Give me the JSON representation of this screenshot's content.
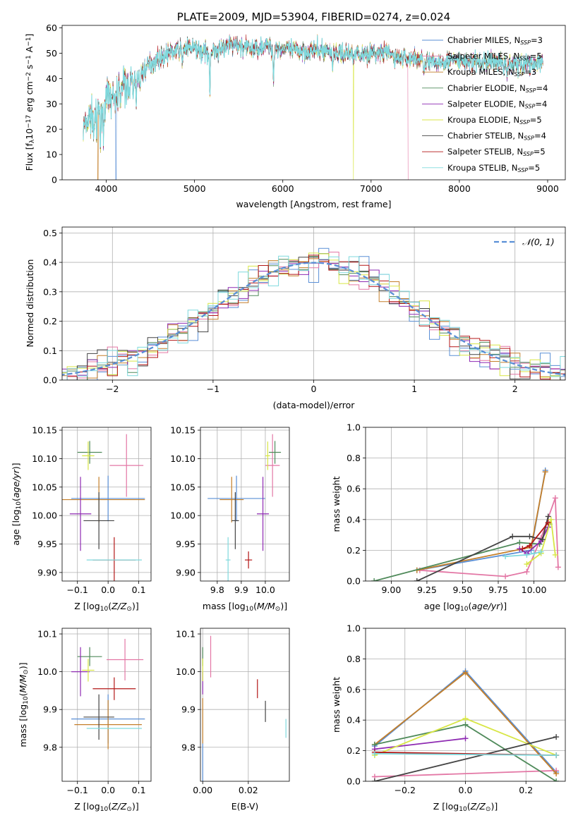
{
  "figure_title": "PLATE=2009, MJD=53904, FIBERID=0274, z=0.024",
  "colors": {
    "Chabrier MILES": "#5a8fd6",
    "Salpeter MILES": "#e377a5",
    "Kroupa MILES": "#c47f2a",
    "Chabrier ELODIE": "#4f8a5a",
    "Salpeter ELODIE": "#8e2ab2",
    "Kroupa ELODIE": "#d8e646",
    "Chabrier STELIB": "#444444",
    "Salpeter STELIB": "#b31717",
    "Kroupa STELIB": "#7fd9dd"
  },
  "chart_data": [
    {
      "id": "spectrum",
      "type": "line",
      "title": "PLATE=2009, MJD=53904, FIBERID=0274, z=0.024",
      "xlabel": "wavelength [Angstrom, rest frame]",
      "ylabel_parts": [
        "Flux [f",
        "λ",
        "10",
        "−17",
        " erg cm",
        "−2",
        " s",
        "−1",
        " A",
        "−1",
        "]"
      ],
      "xlim": [
        3500,
        9200
      ],
      "ylim": [
        0,
        61
      ],
      "xticks": [
        "4000",
        "5000",
        "6000",
        "7000",
        "8000",
        "9000"
      ],
      "yticks": [
        "0",
        "10",
        "20",
        "30",
        "40",
        "50",
        "60"
      ],
      "legend_position": "upper-right",
      "legend": [
        {
          "model": "Chabrier MILES",
          "n": "3"
        },
        {
          "model": "Salpeter MILES",
          "n": "5"
        },
        {
          "model": "Kroupa MILES",
          "n": "3"
        },
        {
          "model": "Chabrier ELODIE",
          "n": "4"
        },
        {
          "model": "Salpeter ELODIE",
          "n": "4"
        },
        {
          "model": "Kroupa ELODIE",
          "n": "5"
        },
        {
          "model": "Chabrier STELIB",
          "n": "4"
        },
        {
          "model": "Salpeter STELIB",
          "n": "5"
        },
        {
          "model": "Kroupa STELIB",
          "n": "5"
        }
      ],
      "continuum": [
        [
          3740,
          20
        ],
        [
          3800,
          24
        ],
        [
          3900,
          27
        ],
        [
          4000,
          31
        ],
        [
          4100,
          34
        ],
        [
          4200,
          37
        ],
        [
          4300,
          39
        ],
        [
          4400,
          42
        ],
        [
          4500,
          46
        ],
        [
          4600,
          48
        ],
        [
          4700,
          50
        ],
        [
          4800,
          51
        ],
        [
          4900,
          52
        ],
        [
          5000,
          52
        ],
        [
          5100,
          50
        ],
        [
          5200,
          51
        ],
        [
          5300,
          52
        ],
        [
          5400,
          53
        ],
        [
          5500,
          53
        ],
        [
          5600,
          52
        ],
        [
          5700,
          52
        ],
        [
          5800,
          53
        ],
        [
          5900,
          52
        ],
        [
          6000,
          52
        ],
        [
          6100,
          51
        ],
        [
          6200,
          51
        ],
        [
          6300,
          51
        ],
        [
          6400,
          51
        ],
        [
          6500,
          51
        ],
        [
          6600,
          50
        ],
        [
          6700,
          50
        ],
        [
          6800,
          50
        ],
        [
          6900,
          50
        ],
        [
          7000,
          50
        ],
        [
          7100,
          50
        ],
        [
          7200,
          50
        ],
        [
          7300,
          48
        ],
        [
          7400,
          48
        ],
        [
          7500,
          48
        ],
        [
          7600,
          47
        ],
        [
          7700,
          46
        ],
        [
          7800,
          47
        ],
        [
          8000,
          47
        ],
        [
          8200,
          46
        ],
        [
          8400,
          47
        ],
        [
          8600,
          46
        ],
        [
          8800,
          46
        ],
        [
          8950,
          46
        ]
      ],
      "absorption_features": [
        [
          3860,
          10
        ],
        [
          3890,
          12
        ],
        [
          3935,
          16
        ],
        [
          3970,
          13
        ],
        [
          4102,
          10
        ],
        [
          4227,
          5
        ],
        [
          4305,
          8
        ],
        [
          4340,
          9
        ],
        [
          4383,
          6
        ],
        [
          4861,
          7
        ],
        [
          5175,
          16
        ],
        [
          5270,
          5
        ],
        [
          5335,
          4
        ],
        [
          5895,
          15
        ],
        [
          6563,
          6
        ],
        [
          6870,
          3
        ],
        [
          7600,
          3
        ],
        [
          8498,
          4
        ],
        [
          8542,
          5
        ],
        [
          8662,
          4
        ]
      ],
      "dropouts": [
        {
          "model": "Kroupa MILES",
          "x": 3905
        },
        {
          "model": "Chabrier MILES",
          "x": 4110
        },
        {
          "model": "Kroupa ELODIE",
          "x": 6800
        },
        {
          "model": "Salpeter MILES",
          "x": 7420
        }
      ]
    },
    {
      "id": "residuals",
      "type": "step",
      "xlabel": "(data-model)/error",
      "ylabel": "Normed distribution",
      "xlim": [
        -2.5,
        2.5
      ],
      "ylim": [
        0,
        0.52
      ],
      "xticks": [
        "−2",
        "−1",
        "0",
        "1",
        "2"
      ],
      "yticks": [
        "0.0",
        "0.1",
        "0.2",
        "0.3",
        "0.4",
        "0.5"
      ],
      "grid": true,
      "reference_curve": {
        "name": "𝒩(0, 1)",
        "mean": 0,
        "sigma": 1
      },
      "legend_position": "upper-right",
      "bin_width": 0.1,
      "bin_range": [
        -2.5,
        2.5
      ]
    },
    {
      "id": "age_vs_Z",
      "type": "errorbar",
      "xlabel": "Z [log10(Z/Z⊙)]",
      "ylabel": "age  [log10(age/yr)]",
      "xlim": [
        -0.15,
        0.14
      ],
      "ylim": [
        9.885,
        10.155
      ],
      "xticks": [
        "−0.1",
        "0.0",
        "0.1"
      ],
      "yticks": [
        "9.90",
        "9.95",
        "10.00",
        "10.05",
        "10.10",
        "10.15"
      ],
      "grid": true,
      "points": [
        {
          "model": "Chabrier MILES",
          "x": 0.0,
          "y": 10.03,
          "xerr": 0.12,
          "yerr": 0.04
        },
        {
          "model": "Salpeter MILES",
          "x": 0.06,
          "y": 10.088,
          "xerr": 0.055,
          "yerr": 0.055
        },
        {
          "model": "Kroupa MILES",
          "x": -0.03,
          "y": 10.028,
          "xerr": 0.15,
          "yerr": 0.04
        },
        {
          "model": "Chabrier ELODIE",
          "x": -0.06,
          "y": 10.111,
          "xerr": 0.04,
          "yerr": 0.02
        },
        {
          "model": "Salpeter ELODIE",
          "x": -0.09,
          "y": 10.003,
          "xerr": 0.035,
          "yerr": 0.065
        },
        {
          "model": "Kroupa ELODIE",
          "x": -0.065,
          "y": 10.105,
          "xerr": 0.02,
          "yerr": 0.025
        },
        {
          "model": "Chabrier STELIB",
          "x": -0.03,
          "y": 9.991,
          "xerr": 0.05,
          "yerr": 0.05
        },
        {
          "model": "Salpeter STELIB",
          "x": 0.02,
          "y": 9.922,
          "xerr": 0.07,
          "yerr": 0.04
        },
        {
          "model": "Kroupa STELIB",
          "x": 0.02,
          "y": 9.922,
          "xerr": 0.09,
          "yerr": 0.0
        }
      ]
    },
    {
      "id": "age_vs_mass",
      "type": "errorbar",
      "xlabel": "mass [log10(M/M⊙)]",
      "ylabel": "",
      "xlim": [
        9.73,
        10.1
      ],
      "ylim": [
        9.885,
        10.155
      ],
      "xticks": [
        "9.8",
        "9.9",
        "10.0"
      ],
      "yticks": [
        "9.90",
        "9.95",
        "10.00",
        "10.05",
        "10.10",
        "10.15"
      ],
      "grid": true,
      "points": [
        {
          "model": "Chabrier MILES",
          "x": 9.88,
          "y": 10.03,
          "xerr": 0.12,
          "yerr": 0.04
        },
        {
          "model": "Salpeter MILES",
          "x": 10.03,
          "y": 10.088,
          "xerr": 0.03,
          "yerr": 0.055
        },
        {
          "model": "Kroupa MILES",
          "x": 9.86,
          "y": 10.028,
          "xerr": 0.05,
          "yerr": 0.04
        },
        {
          "model": "Chabrier ELODIE",
          "x": 10.04,
          "y": 10.111,
          "xerr": 0.025,
          "yerr": 0.02
        },
        {
          "model": "Salpeter ELODIE",
          "x": 9.99,
          "y": 10.003,
          "xerr": 0.025,
          "yerr": 0.065
        },
        {
          "model": "Kroupa ELODIE",
          "x": 10.01,
          "y": 10.105,
          "xerr": 0.01,
          "yerr": 0.025
        },
        {
          "model": "Chabrier STELIB",
          "x": 9.875,
          "y": 9.991,
          "xerr": 0.015,
          "yerr": 0.05
        },
        {
          "model": "Salpeter STELIB",
          "x": 9.93,
          "y": 9.922,
          "xerr": 0.015,
          "yerr": 0.015
        },
        {
          "model": "Kroupa STELIB",
          "x": 9.845,
          "y": 9.922,
          "xerr": 0.01,
          "yerr": 0.04
        }
      ]
    },
    {
      "id": "weight_vs_age",
      "type": "line",
      "xlabel": "age  [log10(age/yr)]",
      "ylabel": "mass weight",
      "xlim": [
        8.82,
        10.22
      ],
      "ylim": [
        0,
        1
      ],
      "xticks": [
        "9.00",
        "9.25",
        "9.50",
        "9.75",
        "10.00"
      ],
      "yticks": [
        "0.0",
        "0.2",
        "0.4",
        "0.6",
        "0.8",
        "1.0"
      ],
      "grid": true,
      "series": [
        {
          "model": "Chabrier MILES",
          "x": [
            9.18,
            9.98,
            10.08
          ],
          "y": [
            0.07,
            0.2,
            0.72
          ]
        },
        {
          "model": "Salpeter MILES",
          "x": [
            9.2,
            9.8,
            9.95,
            10.05,
            10.15,
            10.17
          ],
          "y": [
            0.07,
            0.03,
            0.06,
            0.28,
            0.54,
            0.09
          ]
        },
        {
          "model": "Kroupa MILES",
          "x": [
            9.18,
            9.98,
            10.08
          ],
          "y": [
            0.07,
            0.22,
            0.71
          ]
        },
        {
          "model": "Chabrier ELODIE",
          "x": [
            8.88,
            9.9,
            10.04,
            10.11
          ],
          "y": [
            0.0,
            0.25,
            0.24,
            0.37
          ]
        },
        {
          "model": "Salpeter ELODIE",
          "x": [
            9.9,
            9.95,
            10.05,
            10.1
          ],
          "y": [
            0.21,
            0.18,
            0.26,
            0.35
          ]
        },
        {
          "model": "Kroupa ELODIE",
          "x": [
            9.95,
            10.05,
            10.12,
            10.15
          ],
          "y": [
            0.11,
            0.18,
            0.4,
            0.17
          ]
        },
        {
          "model": "Chabrier STELIB",
          "x": [
            9.18,
            9.85,
            9.97,
            10.06,
            10.1
          ],
          "y": [
            0.0,
            0.29,
            0.29,
            0.27,
            0.42
          ]
        },
        {
          "model": "Salpeter STELIB",
          "x": [
            9.92,
            9.97,
            10.1
          ],
          "y": [
            0.21,
            0.23,
            0.38
          ]
        },
        {
          "model": "Kroupa STELIB",
          "x": [
            9.8,
            9.95,
            10.0,
            10.05
          ],
          "y": [
            0.16,
            0.17,
            0.18,
            0.19
          ]
        }
      ]
    },
    {
      "id": "mass_vs_Z",
      "type": "errorbar",
      "xlabel": "Z [log10(Z/Z⊙)]",
      "ylabel": "mass [log10(M/M⊙)]",
      "xlim": [
        -0.15,
        0.14
      ],
      "ylim": [
        9.71,
        10.115
      ],
      "xticks": [
        "−0.1",
        "0.0",
        "0.1"
      ],
      "yticks": [
        "9.8",
        "9.9",
        "10.0",
        "10.1"
      ],
      "grid": true,
      "points": [
        {
          "model": "Chabrier MILES",
          "x": 0.0,
          "y": 9.875,
          "xerr": 0.12,
          "yerr": 0.065
        },
        {
          "model": "Salpeter MILES",
          "x": 0.055,
          "y": 10.032,
          "xerr": 0.06,
          "yerr": 0.055
        },
        {
          "model": "Kroupa MILES",
          "x": 0.0,
          "y": 9.86,
          "xerr": 0.11,
          "yerr": 0.065
        },
        {
          "model": "Chabrier ELODIE",
          "x": -0.06,
          "y": 10.04,
          "xerr": 0.04,
          "yerr": 0.025
        },
        {
          "model": "Salpeter ELODIE",
          "x": -0.09,
          "y": 10.0,
          "xerr": 0.03,
          "yerr": 0.065
        },
        {
          "model": "Kroupa ELODIE",
          "x": -0.065,
          "y": 10.004,
          "xerr": 0.02,
          "yerr": 0.03
        },
        {
          "model": "Chabrier STELIB",
          "x": -0.03,
          "y": 9.88,
          "xerr": 0.05,
          "yerr": 0.06
        },
        {
          "model": "Salpeter STELIB",
          "x": 0.02,
          "y": 9.955,
          "xerr": 0.07,
          "yerr": 0.03
        },
        {
          "model": "Kroupa STELIB",
          "x": 0.02,
          "y": 9.85,
          "xerr": 0.09,
          "yerr": 0.0
        }
      ]
    },
    {
      "id": "mass_vs_ebv",
      "type": "errorbar",
      "xlabel": "E(B-V)",
      "ylabel": "",
      "xlim": [
        -0.001,
        0.038
      ],
      "ylim": [
        9.71,
        10.115
      ],
      "xticks": [
        "0.00",
        "0.02"
      ],
      "yticks": [
        "9.8",
        "9.9",
        "10.0",
        "10.1"
      ],
      "grid": true,
      "points": [
        {
          "model": "Chabrier MILES",
          "x": 0.0,
          "y": 9.76,
          "xerr": 0,
          "yerr": 0.05
        },
        {
          "model": "Salpeter MILES",
          "x": 0.0035,
          "y": 10.04,
          "xerr": 0,
          "yerr": 0.055
        },
        {
          "model": "Kroupa MILES",
          "x": 0.0,
          "y": 9.87,
          "xerr": 0,
          "yerr": 0.06
        },
        {
          "model": "Chabrier ELODIE",
          "x": 0.0,
          "y": 10.04,
          "xerr": 0,
          "yerr": 0.025
        },
        {
          "model": "Salpeter ELODIE",
          "x": 0.0,
          "y": 9.97,
          "xerr": 0,
          "yerr": 0.03
        },
        {
          "model": "Kroupa ELODIE",
          "x": 0.0,
          "y": 10.005,
          "xerr": 0,
          "yerr": 0.03
        },
        {
          "model": "Chabrier STELIB",
          "x": 0.0275,
          "y": 9.895,
          "xerr": 0,
          "yerr": 0.028
        },
        {
          "model": "Salpeter STELIB",
          "x": 0.024,
          "y": 9.955,
          "xerr": 0,
          "yerr": 0.025
        },
        {
          "model": "Kroupa STELIB",
          "x": 0.0365,
          "y": 9.85,
          "xerr": 0,
          "yerr": 0.025
        }
      ]
    },
    {
      "id": "weight_vs_Z",
      "type": "line",
      "xlabel": "Z [log10(Z/Z⊙)]",
      "ylabel": "mass weight",
      "xlim": [
        -0.33,
        0.33
      ],
      "ylim": [
        0,
        1
      ],
      "xticks": [
        "−0.2",
        "0.0",
        "0.2"
      ],
      "yticks": [
        "0.0",
        "0.2",
        "0.4",
        "0.6",
        "0.8",
        "1.0"
      ],
      "grid": true,
      "series": [
        {
          "model": "Chabrier MILES",
          "x": [
            -0.3,
            0.0,
            0.3
          ],
          "y": [
            0.23,
            0.72,
            0.06
          ]
        },
        {
          "model": "Salpeter MILES",
          "x": [
            -0.3,
            0.3
          ],
          "y": [
            0.03,
            0.07
          ]
        },
        {
          "model": "Kroupa MILES",
          "x": [
            -0.3,
            0.0,
            0.3
          ],
          "y": [
            0.24,
            0.71,
            0.05
          ]
        },
        {
          "model": "Chabrier ELODIE",
          "x": [
            -0.3,
            0.0,
            0.3
          ],
          "y": [
            0.24,
            0.37,
            0.0
          ]
        },
        {
          "model": "Salpeter ELODIE",
          "x": [
            -0.3,
            0.0
          ],
          "y": [
            0.21,
            0.28
          ]
        },
        {
          "model": "Kroupa ELODIE",
          "x": [
            -0.3,
            0.0,
            0.3
          ],
          "y": [
            0.17,
            0.41,
            0.17
          ]
        },
        {
          "model": "Chabrier STELIB",
          "x": [
            -0.3,
            0.3
          ],
          "y": [
            0.0,
            0.29
          ]
        },
        {
          "model": "Salpeter STELIB",
          "x": [
            -0.3,
            0.3
          ],
          "y": [
            0.19,
            0.17
          ]
        },
        {
          "model": "Kroupa STELIB",
          "x": [
            -0.3,
            0.3
          ],
          "y": [
            0.18,
            0.17
          ]
        }
      ]
    }
  ]
}
